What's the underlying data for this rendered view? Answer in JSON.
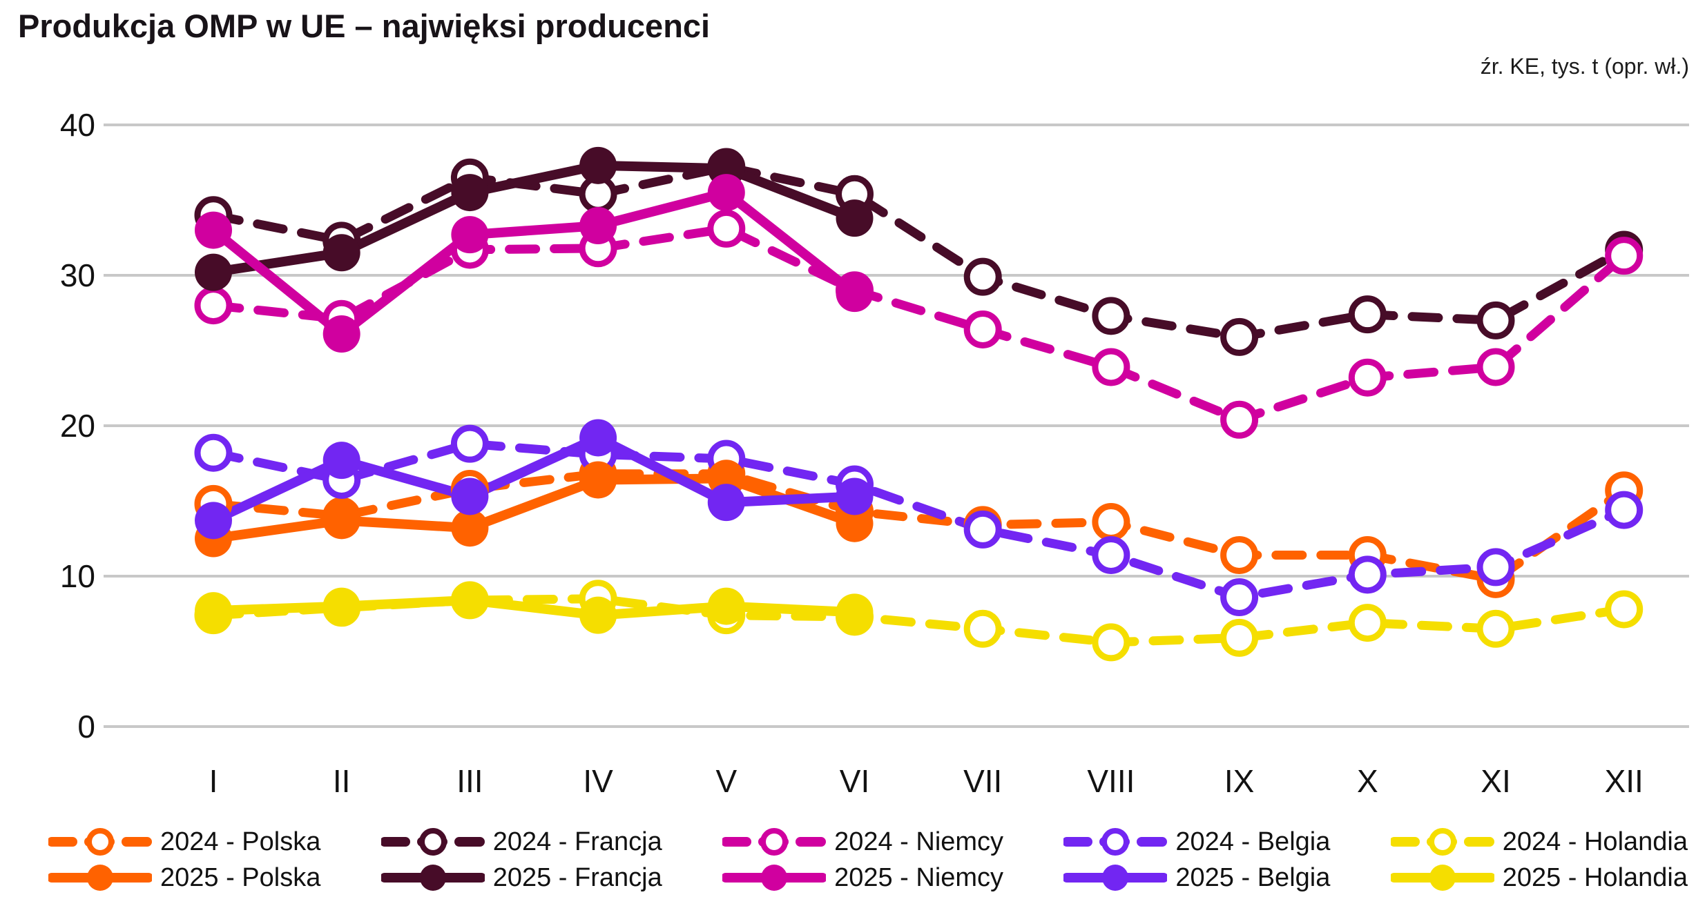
{
  "title": "Produkcja OMP w UE – najwięksi producenci",
  "source_note": "źr. KE, tys. t (opr. wł.)",
  "chart_data": {
    "type": "line",
    "categories": [
      "I",
      "II",
      "III",
      "IV",
      "V",
      "VI",
      "VII",
      "VIII",
      "IX",
      "X",
      "XI",
      "XII"
    ],
    "xlabel": "",
    "ylabel": "",
    "unit": "tys. t",
    "ylim": [
      0,
      40
    ],
    "yticks": [
      0,
      10,
      20,
      30,
      40
    ],
    "grid": "horizontal-only",
    "gridline_color": "#c8c8c8",
    "legend_position": "bottom",
    "series": [
      {
        "name": "2024 - Polska",
        "year": "2024",
        "country": "Polska",
        "color": "#FF6200",
        "style": "dashed",
        "marker": "open-circle",
        "values": [
          14.8,
          14.0,
          15.8,
          16.8,
          16.8,
          14.3,
          13.4,
          13.6,
          11.4,
          11.4,
          9.8,
          15.7
        ]
      },
      {
        "name": "2024 - Francja",
        "year": "2024",
        "country": "Francja",
        "color": "#470C28",
        "style": "dashed",
        "marker": "open-circle",
        "values": [
          34.0,
          32.3,
          36.5,
          35.4,
          37.2,
          35.4,
          29.9,
          27.3,
          25.9,
          27.4,
          27.0,
          31.7
        ]
      },
      {
        "name": "2024 - Niemcy",
        "year": "2024",
        "country": "Niemcy",
        "color": "#D0009F",
        "style": "dashed",
        "marker": "open-circle",
        "values": [
          28.0,
          27.1,
          31.7,
          31.8,
          33.1,
          29.0,
          26.4,
          23.9,
          20.4,
          23.2,
          23.9,
          31.3
        ]
      },
      {
        "name": "2024 - Belgia",
        "year": "2024",
        "country": "Belgia",
        "color": "#7226F2",
        "style": "dashed",
        "marker": "open-circle",
        "values": [
          18.2,
          16.4,
          18.8,
          18.1,
          17.8,
          16.1,
          13.1,
          11.4,
          8.6,
          10.1,
          10.6,
          14.4
        ]
      },
      {
        "name": "2024 - Holandia",
        "year": "2024",
        "country": "Holandia",
        "color": "#F5DE00",
        "style": "dashed",
        "marker": "open-circle",
        "values": [
          7.4,
          7.9,
          8.4,
          8.5,
          7.4,
          7.3,
          6.5,
          5.6,
          5.9,
          6.9,
          6.5,
          7.8
        ]
      },
      {
        "name": "2025 - Polska",
        "year": "2025",
        "country": "Polska",
        "color": "#FF6200",
        "style": "solid",
        "marker": "filled-circle",
        "values": [
          12.5,
          13.7,
          13.2,
          16.4,
          16.5,
          13.5
        ]
      },
      {
        "name": "2025 - Francja",
        "year": "2025",
        "country": "Francja",
        "color": "#470C28",
        "style": "solid",
        "marker": "filled-circle",
        "values": [
          30.2,
          31.5,
          35.5,
          37.3,
          37.1,
          33.8
        ]
      },
      {
        "name": "2025 - Niemcy",
        "year": "2025",
        "country": "Niemcy",
        "color": "#D0009F",
        "style": "solid",
        "marker": "filled-circle",
        "values": [
          33.0,
          26.1,
          32.7,
          33.3,
          35.5,
          28.8
        ]
      },
      {
        "name": "2025 - Belgia",
        "year": "2025",
        "country": "Belgia",
        "color": "#7226F2",
        "style": "solid",
        "marker": "filled-circle",
        "values": [
          13.7,
          17.7,
          15.3,
          19.2,
          14.9,
          15.3
        ]
      },
      {
        "name": "2025 - Holandia",
        "year": "2025",
        "country": "Holandia",
        "color": "#F5DE00",
        "style": "solid",
        "marker": "filled-circle",
        "values": [
          7.7,
          8.0,
          8.4,
          7.4,
          8.0,
          7.6
        ]
      }
    ]
  }
}
